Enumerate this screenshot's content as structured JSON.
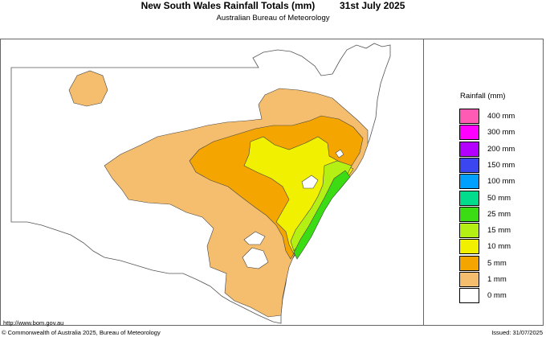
{
  "header": {
    "title": "New South Wales Rainfall Totals (mm)",
    "date": "31st July 2025",
    "subtitle": "Australian Bureau of Meteorology"
  },
  "legend": {
    "title": "Rainfall (mm)",
    "items": [
      {
        "label": "400 mm",
        "color": "#ff5ab4"
      },
      {
        "label": "300 mm",
        "color": "#ff00ff"
      },
      {
        "label": "200 mm",
        "color": "#b400ff"
      },
      {
        "label": "150 mm",
        "color": "#3c46f0"
      },
      {
        "label": "100 mm",
        "color": "#00a0ff"
      },
      {
        "label": "50 mm",
        "color": "#00dc8c"
      },
      {
        "label": "25 mm",
        "color": "#3cdc14"
      },
      {
        "label": "15 mm",
        "color": "#b4f014"
      },
      {
        "label": "10 mm",
        "color": "#f0f000"
      },
      {
        "label": "5 mm",
        "color": "#f5a500"
      },
      {
        "label": "1 mm",
        "color": "#f5be6e"
      },
      {
        "label": "0 mm",
        "color": "#ffffff"
      }
    ]
  },
  "footer": {
    "url": "http://www.bom.gov.au",
    "copyright": "© Commonwealth of Australia 2025, Bureau of Meteorology",
    "issued": "Issued: 31/07/2025"
  }
}
